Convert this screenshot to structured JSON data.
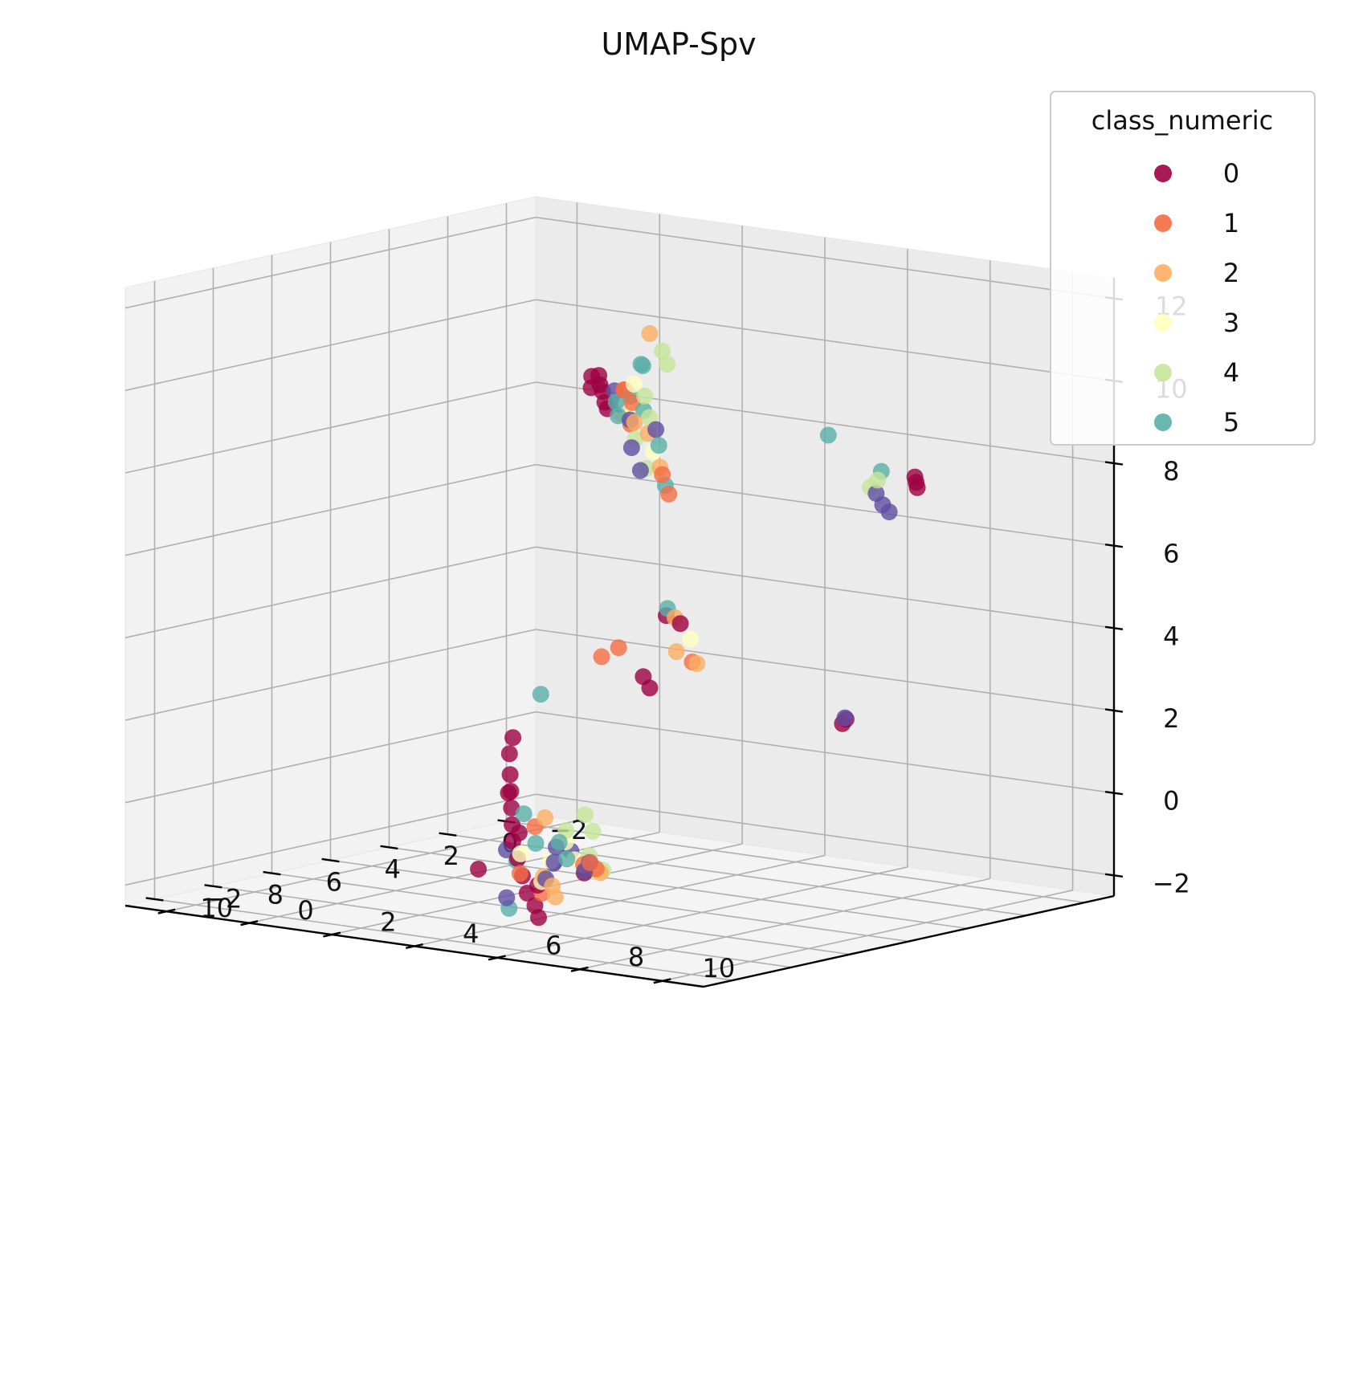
{
  "chart_data": {
    "type": "scatter",
    "projection": "3d",
    "title": "UMAP-Spv",
    "xlabel": "",
    "ylabel": "",
    "zlabel": "",
    "xlim": [
      -3,
      11
    ],
    "ylim": [
      -3,
      11
    ],
    "zlim": [
      -2.5,
      12.5
    ],
    "xticks": [
      "−2",
      "0",
      "2",
      "4",
      "6",
      "8",
      "10"
    ],
    "yticks": [
      "−2",
      "0",
      "2",
      "4",
      "6",
      "8",
      "10"
    ],
    "zticks": [
      "−2",
      "0",
      "2",
      "4",
      "6",
      "8",
      "10",
      "12"
    ],
    "grid": true,
    "legend": {
      "title": "class_numeric",
      "position": "top-right"
    },
    "series": [
      {
        "name": "0",
        "color": "#9e0142",
        "points": [
          [
            0.2,
            0.8,
            9.2
          ],
          [
            0.3,
            0.9,
            9.0
          ],
          [
            0.5,
            1.1,
            8.9
          ],
          [
            0.7,
            1.3,
            8.7
          ],
          [
            0.9,
            1.5,
            8.6
          ],
          [
            -0.4,
            0.2,
            9.0
          ],
          [
            -0.1,
            0.4,
            8.8
          ],
          [
            -0.2,
            6.5,
            1.6
          ],
          [
            -0.5,
            6.2,
            1.4
          ],
          [
            4.4,
            1.7,
            1.2
          ],
          [
            4.8,
            1.9,
            0.9
          ],
          [
            5.2,
            2.2,
            0.5
          ],
          [
            5.6,
            2.5,
            0.2
          ],
          [
            6.0,
            2.8,
            -0.1
          ],
          [
            6.4,
            3.1,
            -0.4
          ],
          [
            6.8,
            3.4,
            -0.7
          ],
          [
            7.2,
            3.8,
            -1.0
          ],
          [
            7.6,
            4.2,
            -1.3
          ],
          [
            8.0,
            4.6,
            -1.6
          ],
          [
            8.3,
            5.0,
            -1.8
          ],
          [
            8.6,
            5.3,
            -2.0
          ],
          [
            5.4,
            2.3,
            0.1
          ],
          [
            6.3,
            3.2,
            -0.6
          ],
          [
            7.5,
            4.5,
            -1.5
          ],
          [
            6.9,
            5.2,
            -1.2
          ],
          [
            9.1,
            4.2,
            -0.9
          ],
          [
            -2.3,
            0.1,
            1.4
          ],
          [
            -2.1,
            0.4,
            1.2
          ],
          [
            10.3,
            9.6,
            6.2
          ],
          [
            10.1,
            9.8,
            6.0
          ],
          [
            2.1,
            9.8,
            8.3
          ],
          [
            2.2,
            9.9,
            8.2
          ],
          [
            2.3,
            10.0,
            8.1
          ]
        ]
      },
      {
        "name": "1",
        "color": "#f46d43",
        "points": [
          [
            -1.5,
            0.2,
            8.5
          ],
          [
            -1.1,
            0.5,
            8.6
          ],
          [
            -0.8,
            0.9,
            8.4
          ],
          [
            -1.4,
            1.2,
            6.6
          ],
          [
            -1.2,
            1.5,
            6.2
          ],
          [
            -1.6,
            0.0,
            2.2
          ],
          [
            -1.3,
            -0.2,
            2.0
          ],
          [
            6.5,
            4.9,
            -1.1
          ],
          [
            7.4,
            4.0,
            -1.3
          ],
          [
            5.9,
            3.3,
            -0.5
          ],
          [
            8.2,
            5.1,
            -1.5
          ],
          [
            -2.0,
            1.5,
            2.0
          ],
          [
            0.1,
            1.5,
            8.1
          ],
          [
            4.3,
            3.5,
            -1.6
          ],
          [
            7.9,
            6.2,
            -0.8
          ]
        ]
      },
      {
        "name": "2",
        "color": "#fdae61",
        "points": [
          [
            -2.1,
            0.4,
            9.8
          ],
          [
            -1.2,
            1.0,
            7.6
          ],
          [
            -0.9,
            1.5,
            6.9
          ],
          [
            -1.3,
            0.6,
            7.8
          ],
          [
            -1.6,
            1.4,
            2.3
          ],
          [
            -2.3,
            1.4,
            1.9
          ],
          [
            6.6,
            4.0,
            -1.5
          ],
          [
            7.0,
            4.5,
            -1.6
          ],
          [
            7.6,
            5.0,
            -1.7
          ],
          [
            8.6,
            6.8,
            -0.7
          ],
          [
            9.3,
            7.1,
            -0.4
          ],
          [
            5.7,
            3.4,
            -0.3
          ],
          [
            10.0,
            9.6,
            6.1
          ],
          [
            0.0,
            1.2,
            8.3
          ]
        ]
      },
      {
        "name": "3",
        "color": "#ffffbf",
        "points": [
          [
            -1.0,
            0.8,
            8.8
          ],
          [
            -0.6,
            0.9,
            8.4
          ],
          [
            0.6,
            2.0,
            8.7
          ],
          [
            -1.1,
            1.2,
            7.2
          ],
          [
            -1.8,
            1.6,
            2.6
          ],
          [
            7.1,
            3.8,
            -0.9
          ],
          [
            7.5,
            4.6,
            -1.4
          ],
          [
            8.1,
            5.6,
            -0.2
          ],
          [
            8.5,
            6.1,
            -0.5
          ],
          [
            6.2,
            3.9,
            -1.2
          ]
        ]
      },
      {
        "name": "4",
        "color": "#c5e69a",
        "points": [
          [
            -1.4,
            1.2,
            9.6
          ],
          [
            -1.0,
            1.6,
            9.4
          ],
          [
            -0.8,
            1.2,
            8.6
          ],
          [
            -0.4,
            1.6,
            8.2
          ],
          [
            -0.9,
            0.9,
            7.5
          ],
          [
            -1.0,
            1.1,
            6.8
          ],
          [
            2.1,
            8.9,
            8.1
          ],
          [
            2.5,
            9.0,
            8.0
          ],
          [
            8.0,
            6.0,
            0.5
          ],
          [
            8.3,
            6.4,
            0.2
          ],
          [
            8.7,
            6.6,
            -0.3
          ],
          [
            9.0,
            6.9,
            -0.6
          ],
          [
            7.8,
            5.4,
            0.0
          ],
          [
            9.5,
            7.5,
            -0.4
          ]
        ]
      },
      {
        "name": "5",
        "color": "#5aafa9",
        "points": [
          [
            -1.8,
            0.4,
            9.1
          ],
          [
            -1.3,
            0.8,
            9.2
          ],
          [
            -1.8,
            -0.2,
            8.1
          ],
          [
            -1.3,
            0.2,
            7.9
          ],
          [
            -0.6,
            1.0,
            8.6
          ],
          [
            -0.2,
            1.6,
            8.4
          ],
          [
            -1.0,
            1.4,
            7.4
          ],
          [
            2.8,
            8.2,
            9.2
          ],
          [
            2.4,
            9.2,
            8.4
          ],
          [
            5.0,
            2.8,
            2.5
          ],
          [
            6.0,
            3.1,
            -0.2
          ],
          [
            6.3,
            3.6,
            -0.8
          ],
          [
            5.8,
            4.0,
            -1.2
          ],
          [
            7.8,
            4.2,
            -0.9
          ],
          [
            8.9,
            4.8,
            -1.8
          ],
          [
            5.5,
            3.6,
            -0.9
          ],
          [
            10.4,
            9.7,
            6.4
          ],
          [
            -0.8,
            1.7,
            6.5
          ]
        ]
      },
      {
        "name": "",
        "color": "#5e4fa2",
        "points": [
          [
            -0.9,
            0.4,
            8.6
          ],
          [
            -0.5,
            0.8,
            8.4
          ],
          [
            -0.3,
            1.2,
            8.1
          ],
          [
            -1.2,
            0.6,
            7.2
          ],
          [
            -1.5,
            0.6,
            6.6
          ],
          [
            3.0,
            9.5,
            8.0
          ],
          [
            3.2,
            9.8,
            7.8
          ],
          [
            3.4,
            10.1,
            7.7
          ],
          [
            -0.3,
            6.4,
            1.6
          ],
          [
            5.6,
            3.6,
            -1.0
          ],
          [
            6.4,
            4.1,
            -1.2
          ],
          [
            7.3,
            3.6,
            -0.8
          ],
          [
            8.7,
            4.6,
            -1.6
          ],
          [
            5.1,
            3.2,
            -1.5
          ],
          [
            8.9,
            6.3,
            -0.2
          ],
          [
            7.0,
            5.4,
            -0.9
          ],
          [
            5.9,
            4.5,
            -1.4
          ],
          [
            6.8,
            4.2,
            -1.5
          ],
          [
            -0.9,
            1.4,
            7.8
          ]
        ]
      }
    ]
  }
}
